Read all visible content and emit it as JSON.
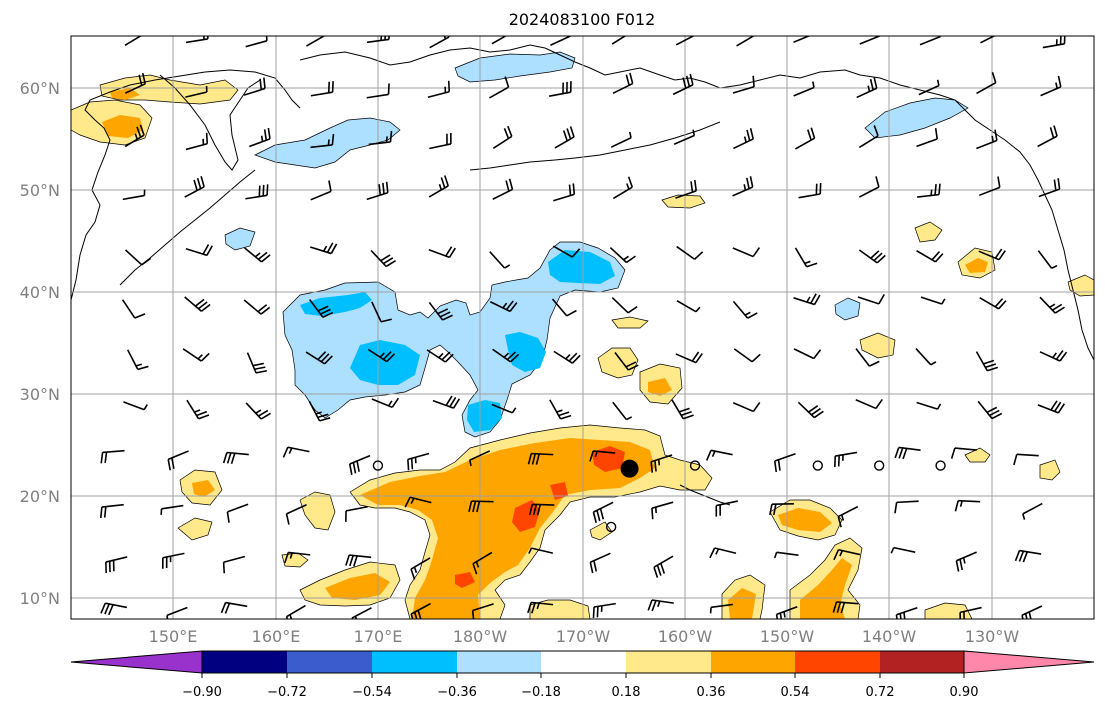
{
  "title": "2024083100 F012",
  "lat_labels": [
    "60°N",
    "50°N",
    "40°N",
    "30°N",
    "20°N",
    "10°N"
  ],
  "lon_labels": [
    "150°E",
    "160°E",
    "170°E",
    "180°W",
    "170°W",
    "160°W",
    "150°W",
    "140°W",
    "130°W"
  ],
  "colorbar": {
    "tick_labels": [
      "−0.90",
      "−0.72",
      "−0.54",
      "−0.36",
      "−0.18",
      "0.18",
      "0.36",
      "0.54",
      "0.72",
      "0.90"
    ],
    "colors": [
      "#9932CC",
      "#000080",
      "#3A5CCC",
      "#00BFFF",
      "#ADDFFF",
      "#FFFFFF",
      "#FFE98A",
      "#FFA500",
      "#FF4500",
      "#B22222",
      "#FF88AA"
    ]
  },
  "map": {
    "lat_range": [
      8,
      65
    ],
    "lon_range": [
      140,
      240
    ],
    "storm_center": {
      "lat": 22.7,
      "lon": 194.6
    },
    "calm_stations": [
      {
        "lat": 23,
        "lon": 170
      },
      {
        "lat": 17,
        "lon": 192.8
      },
      {
        "lat": 23,
        "lon": 201
      },
      {
        "lat": 23,
        "lon": 213
      },
      {
        "lat": 23,
        "lon": 219
      },
      {
        "lat": 23,
        "lon": 225
      }
    ],
    "colors": {
      "positive_low": "#FFE98A",
      "positive_mid": "#FFA500",
      "positive_high": "#FF4500",
      "negative_low": "#ADDFFF",
      "negative_mid": "#00BFFF",
      "coastline": "#000000"
    }
  }
}
